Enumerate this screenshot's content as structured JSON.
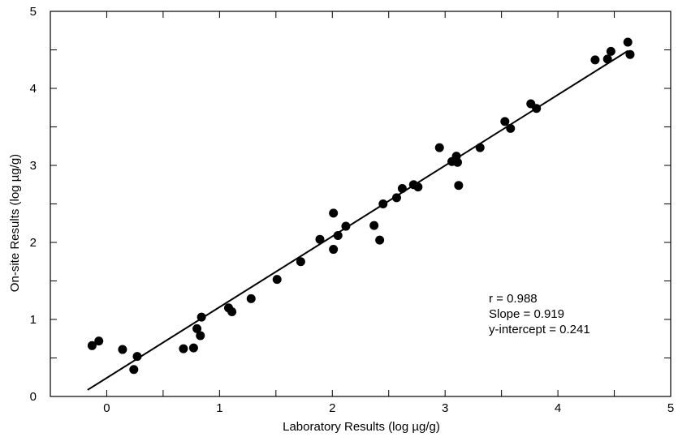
{
  "chart_data": {
    "type": "scatter",
    "title": "",
    "xlabel": "Laboratory Results (log µg/g)",
    "ylabel": "On-site Results (log µg/g)",
    "xlim": [
      -0.5,
      5
    ],
    "ylim": [
      0,
      5
    ],
    "x_ticks": [
      0,
      1,
      2,
      3,
      4,
      5
    ],
    "y_ticks": [
      0,
      1,
      2,
      3,
      4,
      5
    ],
    "grid": false,
    "series": [
      {
        "values": [
          {
            "x": -0.13,
            "y": 0.66
          },
          {
            "x": -0.07,
            "y": 0.72
          },
          {
            "x": 0.14,
            "y": 0.61
          },
          {
            "x": 0.24,
            "y": 0.35
          },
          {
            "x": 0.27,
            "y": 0.52
          },
          {
            "x": 0.68,
            "y": 0.62
          },
          {
            "x": 0.77,
            "y": 0.63
          },
          {
            "x": 0.8,
            "y": 0.88
          },
          {
            "x": 0.83,
            "y": 0.79
          },
          {
            "x": 0.84,
            "y": 1.03
          },
          {
            "x": 1.08,
            "y": 1.15
          },
          {
            "x": 1.11,
            "y": 1.1
          },
          {
            "x": 1.28,
            "y": 1.27
          },
          {
            "x": 1.51,
            "y": 1.52
          },
          {
            "x": 1.72,
            "y": 1.75
          },
          {
            "x": 1.89,
            "y": 2.04
          },
          {
            "x": 2.01,
            "y": 2.38
          },
          {
            "x": 2.01,
            "y": 1.91
          },
          {
            "x": 2.05,
            "y": 2.09
          },
          {
            "x": 2.12,
            "y": 2.21
          },
          {
            "x": 2.37,
            "y": 2.22
          },
          {
            "x": 2.42,
            "y": 2.03
          },
          {
            "x": 2.45,
            "y": 2.5
          },
          {
            "x": 2.57,
            "y": 2.58
          },
          {
            "x": 2.62,
            "y": 2.7
          },
          {
            "x": 2.72,
            "y": 2.75
          },
          {
            "x": 2.76,
            "y": 2.72
          },
          {
            "x": 2.95,
            "y": 3.23
          },
          {
            "x": 3.06,
            "y": 3.05
          },
          {
            "x": 3.1,
            "y": 3.12
          },
          {
            "x": 3.11,
            "y": 3.04
          },
          {
            "x": 3.12,
            "y": 2.74
          },
          {
            "x": 3.31,
            "y": 3.23
          },
          {
            "x": 3.53,
            "y": 3.57
          },
          {
            "x": 3.58,
            "y": 3.48
          },
          {
            "x": 3.76,
            "y": 3.8
          },
          {
            "x": 3.81,
            "y": 3.74
          },
          {
            "x": 4.33,
            "y": 4.37
          },
          {
            "x": 4.44,
            "y": 4.38
          },
          {
            "x": 4.47,
            "y": 4.48
          },
          {
            "x": 4.62,
            "y": 4.6
          },
          {
            "x": 4.64,
            "y": 4.44
          }
        ]
      }
    ],
    "fit_line": {
      "x_start": -0.17,
      "x_end": 4.62,
      "slope": 0.919,
      "intercept": 0.241
    },
    "stats": [
      "r = 0.988",
      "Slope = 0.919",
      "y-intercept = 0.241"
    ]
  }
}
